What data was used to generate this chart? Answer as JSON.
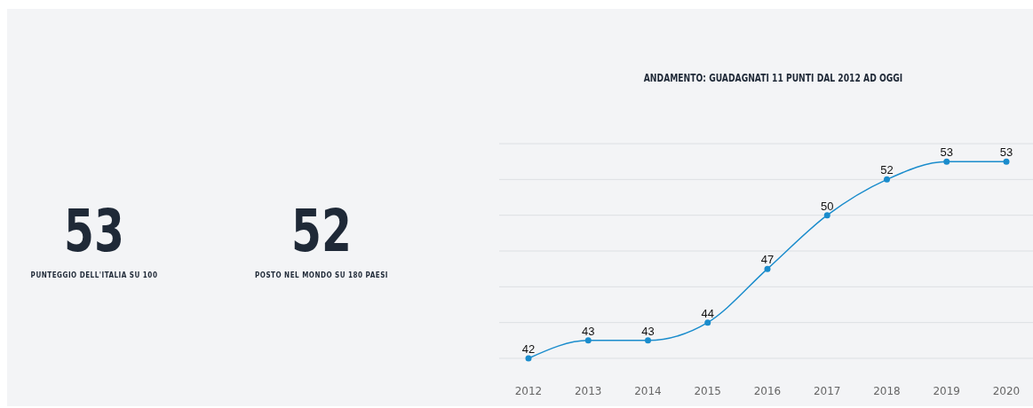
{
  "chart_data": [
    {
      "type": "other",
      "annotations": [
        "53",
        "PUNTEGGIO DELL'ITALIA SU 100",
        "52",
        "POSTO NEL MONDO SU 180 PAESI"
      ]
    },
    {
      "type": "line",
      "title": "ANDAMENTO: GUADAGNATI 11 PUNTI DAL 2012 AD OGGI",
      "categories": [
        "2012",
        "2013",
        "2014",
        "2015",
        "2016",
        "2017",
        "2018",
        "2019",
        "2020"
      ],
      "series": [
        {
          "color": "#1a8ccc",
          "values": [
            42,
            43,
            43,
            44,
            47,
            50,
            52,
            53,
            53
          ]
        }
      ],
      "ylim": [
        42,
        54
      ],
      "yticks": [
        {
          "value": 42,
          "label": null
        },
        {
          "value": 44,
          "label": null
        },
        {
          "value": 46,
          "label": null
        },
        {
          "value": 48,
          "label": null
        },
        {
          "value": 50,
          "label": null
        },
        {
          "value": 52,
          "label": null
        },
        {
          "value": 54,
          "label": null
        }
      ],
      "tick_labels": "x",
      "grid": "y",
      "data_labels": true,
      "marker": "circle"
    }
  ]
}
